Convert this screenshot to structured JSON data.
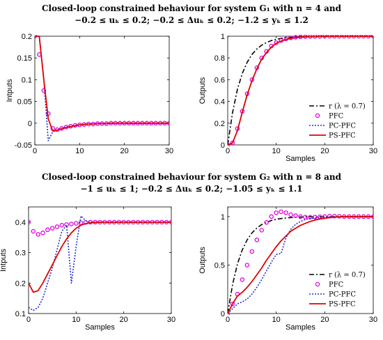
{
  "figure_titles": [
    {
      "line1": "Closed-loop constrained behaviour for system G₁ with n = 4 and",
      "line2": "−0.2 ≤ uₖ ≤ 0.2; −0.2 ≤ Δuₖ ≤ 0.2; −1.2 ≤ yₖ ≤ 1.2"
    },
    {
      "line1": "Closed-loop constrained behaviour for system G₂ with n = 8 and",
      "line2": "−1 ≤ uₖ ≤ 1; −0.2 ≤ Δuₖ ≤ 0.2; −1.05 ≤ yₖ ≤ 1.1"
    }
  ],
  "colors": {
    "reference": "#000000",
    "pfc": "#e000e0",
    "pc_pfc": "#1f2fd8",
    "ps_pfc": "#e00000"
  },
  "chart_data": [
    {
      "type": "line",
      "xlabel": "",
      "ylabel": "Intputs",
      "xlim": [
        0,
        30
      ],
      "ylim": [
        -0.05,
        0.2
      ],
      "xticks": [
        0,
        10,
        20,
        30
      ],
      "yticks": [
        -0.05,
        0,
        0.05,
        0.1,
        0.15,
        0.2
      ],
      "ytick_labels": [
        "-0.05",
        "0",
        "0.05",
        "0.1",
        "0.15",
        "0.2"
      ],
      "legend": null,
      "series": [
        {
          "key": "pfc",
          "x": [
            0,
            1,
            2,
            3,
            4,
            5,
            6,
            7,
            8,
            9,
            10,
            11,
            12,
            13,
            14,
            15,
            16,
            17,
            18,
            19,
            20,
            21,
            22,
            23,
            24,
            25,
            26,
            27,
            28,
            29,
            30
          ],
          "y": [
            0.2,
            0.158,
            0.075,
            0.022,
            -0.012,
            -0.015,
            -0.012,
            -0.009,
            -0.007,
            -0.005,
            -0.004,
            -0.003,
            -0.002,
            -0.002,
            -0.001,
            -0.001,
            -0.001,
            0,
            0,
            0,
            0,
            0,
            0,
            0,
            0,
            0,
            0,
            0,
            0,
            0,
            0
          ]
        },
        {
          "key": "pc_pfc",
          "x": [
            0,
            1,
            2,
            3,
            4,
            5,
            6,
            7,
            8,
            9,
            10,
            11,
            12,
            13,
            14,
            15,
            16,
            17,
            18,
            19,
            20,
            21,
            22,
            23,
            24,
            25,
            26,
            27,
            28,
            29,
            30
          ],
          "y": [
            0.2,
            0.2,
            0.1,
            -0.04,
            -0.02,
            -0.015,
            -0.012,
            -0.009,
            -0.007,
            -0.005,
            -0.004,
            -0.003,
            -0.002,
            -0.002,
            -0.001,
            -0.001,
            -0.001,
            0,
            0,
            0,
            0,
            0,
            0,
            0,
            0,
            0,
            0,
            0,
            0,
            0,
            0
          ]
        },
        {
          "key": "ps_pfc",
          "x": [
            0,
            1,
            2,
            3,
            4,
            5,
            6,
            7,
            8,
            9,
            10,
            11,
            12,
            13,
            14,
            15,
            16,
            17,
            18,
            19,
            20,
            21,
            22,
            23,
            24,
            25,
            26,
            27,
            28,
            29,
            30
          ],
          "y": [
            0.2,
            0.2,
            0.1,
            0.01,
            -0.018,
            -0.016,
            -0.013,
            -0.01,
            -0.008,
            -0.006,
            -0.004,
            -0.003,
            -0.002,
            -0.002,
            -0.001,
            -0.001,
            -0.001,
            0,
            0,
            0,
            0,
            0,
            0,
            0,
            0,
            0,
            0,
            0,
            0,
            0,
            0
          ]
        }
      ]
    },
    {
      "type": "line",
      "xlabel": "Samples",
      "ylabel": "Outputs",
      "xlim": [
        0,
        30
      ],
      "ylim": [
        0,
        1
      ],
      "xticks": [
        0,
        10,
        20,
        30
      ],
      "yticks": [
        0,
        0.2,
        0.4,
        0.6,
        0.8,
        1
      ],
      "ytick_labels": [
        "0",
        "0.2",
        "0.4",
        "0.6",
        "0.8",
        "1"
      ],
      "legend": {
        "placement": "bottom-right",
        "labels": [
          "r (λ = 0.7)",
          "PFC",
          "PC-PFC",
          "PS-PFC"
        ]
      },
      "series": [
        {
          "key": "ref",
          "x": [
            0,
            1,
            2,
            3,
            4,
            5,
            6,
            7,
            8,
            9,
            10,
            11,
            12,
            13,
            14,
            15,
            16,
            17,
            18,
            19,
            20,
            21,
            22,
            23,
            24,
            25,
            26,
            27,
            28,
            29,
            30
          ],
          "y": [
            0,
            0.3,
            0.51,
            0.657,
            0.76,
            0.832,
            0.882,
            0.918,
            0.942,
            0.96,
            0.972,
            0.98,
            0.986,
            0.99,
            0.993,
            0.995,
            0.997,
            0.998,
            0.998,
            0.999,
            0.999,
            0.999,
            1,
            1,
            1,
            1,
            1,
            1,
            1,
            1,
            1
          ]
        },
        {
          "key": "pfc",
          "x": [
            0,
            1,
            2,
            3,
            4,
            5,
            6,
            7,
            8,
            9,
            10,
            11,
            12,
            13,
            14,
            15,
            16,
            17,
            18,
            19,
            20,
            21,
            22,
            23,
            24,
            25,
            26,
            27,
            28,
            29,
            30
          ],
          "y": [
            0,
            0.02,
            0.15,
            0.31,
            0.47,
            0.6,
            0.71,
            0.8,
            0.86,
            0.91,
            0.94,
            0.96,
            0.975,
            0.985,
            0.99,
            0.994,
            0.996,
            0.998,
            0.999,
            0.999,
            1,
            1,
            1,
            1,
            1,
            1,
            1,
            1,
            1,
            1,
            1
          ]
        },
        {
          "key": "pc_pfc",
          "x": [
            0,
            1,
            2,
            3,
            4,
            5,
            6,
            7,
            8,
            9,
            10,
            11,
            12,
            13,
            14,
            15,
            16,
            17,
            18,
            19,
            20,
            21,
            22,
            23,
            24,
            25,
            26,
            27,
            28,
            29,
            30
          ],
          "y": [
            0,
            0.02,
            0.13,
            0.3,
            0.46,
            0.59,
            0.7,
            0.79,
            0.85,
            0.9,
            0.935,
            0.955,
            0.97,
            0.98,
            0.987,
            0.992,
            0.995,
            0.997,
            0.998,
            0.999,
            1,
            1,
            1,
            1,
            1,
            1,
            1,
            1,
            1,
            1,
            1
          ]
        },
        {
          "key": "ps_pfc",
          "x": [
            0,
            1,
            2,
            3,
            4,
            5,
            6,
            7,
            8,
            9,
            10,
            11,
            12,
            13,
            14,
            15,
            16,
            17,
            18,
            19,
            20,
            21,
            22,
            23,
            24,
            25,
            26,
            27,
            28,
            29,
            30
          ],
          "y": [
            0,
            0.02,
            0.13,
            0.3,
            0.46,
            0.59,
            0.7,
            0.79,
            0.85,
            0.9,
            0.935,
            0.955,
            0.97,
            0.98,
            0.987,
            0.992,
            0.995,
            0.997,
            0.998,
            0.999,
            1,
            1,
            1,
            1,
            1,
            1,
            1,
            1,
            1,
            1,
            1
          ]
        }
      ]
    },
    {
      "type": "line",
      "xlabel": "Samples",
      "ylabel": "Intputs",
      "xlim": [
        0,
        30
      ],
      "ylim": [
        0.1,
        0.45
      ],
      "xticks": [
        0,
        10,
        20,
        30
      ],
      "yticks": [
        0.1,
        0.2,
        0.3,
        0.4
      ],
      "ytick_labels": [
        "0.1",
        "0.2",
        "0.3",
        "0.4"
      ],
      "legend": null,
      "series": [
        {
          "key": "pfc",
          "x": [
            0,
            1,
            2,
            3,
            4,
            5,
            6,
            7,
            8,
            9,
            10,
            11,
            12,
            13,
            14,
            15,
            16,
            17,
            18,
            19,
            20,
            21,
            22,
            23,
            24,
            25,
            26,
            27,
            28,
            29,
            30
          ],
          "y": [
            0.4,
            0.37,
            0.36,
            0.365,
            0.375,
            0.38,
            0.385,
            0.39,
            0.392,
            0.394,
            0.396,
            0.398,
            0.399,
            0.4,
            0.4,
            0.4,
            0.4,
            0.4,
            0.4,
            0.4,
            0.4,
            0.4,
            0.4,
            0.4,
            0.4,
            0.4,
            0.4,
            0.4,
            0.4,
            0.4,
            0.4
          ]
        },
        {
          "key": "pc_pfc",
          "x": [
            0,
            1,
            2,
            3,
            4,
            5,
            6,
            7,
            8,
            9,
            10,
            11,
            12,
            13,
            14,
            15,
            16,
            17,
            18,
            19,
            20,
            21,
            22,
            23,
            24,
            25,
            26,
            27,
            28,
            29,
            30
          ],
          "y": [
            0.12,
            0.11,
            0.12,
            0.15,
            0.2,
            0.25,
            0.31,
            0.37,
            0.39,
            0.2,
            0.32,
            0.42,
            0.405,
            0.4,
            0.4,
            0.4,
            0.4,
            0.4,
            0.4,
            0.4,
            0.4,
            0.4,
            0.4,
            0.4,
            0.4,
            0.4,
            0.4,
            0.4,
            0.4,
            0.4,
            0.4
          ]
        },
        {
          "key": "ps_pfc",
          "x": [
            0,
            1,
            2,
            3,
            4,
            5,
            6,
            7,
            8,
            9,
            10,
            11,
            12,
            13,
            14,
            15,
            16,
            17,
            18,
            19,
            20,
            21,
            22,
            23,
            24,
            25,
            26,
            27,
            28,
            29,
            30
          ],
          "y": [
            0.2,
            0.17,
            0.175,
            0.2,
            0.23,
            0.26,
            0.29,
            0.32,
            0.345,
            0.365,
            0.38,
            0.39,
            0.395,
            0.398,
            0.399,
            0.4,
            0.4,
            0.4,
            0.4,
            0.4,
            0.4,
            0.4,
            0.4,
            0.4,
            0.4,
            0.4,
            0.4,
            0.4,
            0.4,
            0.4,
            0.4
          ]
        }
      ]
    },
    {
      "type": "line",
      "xlabel": "Samples",
      "ylabel": "Outputs",
      "xlim": [
        0,
        30
      ],
      "ylim": [
        0,
        1.1
      ],
      "xticks": [
        0,
        10,
        20,
        30
      ],
      "yticks": [
        0,
        0.5,
        1
      ],
      "ytick_labels": [
        "0",
        "0.5",
        "1"
      ],
      "legend": {
        "placement": "bottom-right",
        "labels": [
          "r (λ = 0.7)",
          "PFC",
          "PC-PFC",
          "PS-PFC"
        ]
      },
      "series": [
        {
          "key": "ref",
          "x": [
            0,
            1,
            2,
            3,
            4,
            5,
            6,
            7,
            8,
            9,
            10,
            11,
            12,
            13,
            14,
            15,
            16,
            17,
            18,
            19,
            20,
            21,
            22,
            23,
            24,
            25,
            26,
            27,
            28,
            29,
            30
          ],
          "y": [
            0,
            0.3,
            0.51,
            0.657,
            0.76,
            0.832,
            0.882,
            0.918,
            0.942,
            0.96,
            0.972,
            0.98,
            0.986,
            0.99,
            0.993,
            0.995,
            0.997,
            0.998,
            0.998,
            0.999,
            0.999,
            0.999,
            1,
            1,
            1,
            1,
            1,
            1,
            1,
            1,
            1
          ]
        },
        {
          "key": "pfc",
          "x": [
            0,
            1,
            2,
            3,
            4,
            5,
            6,
            7,
            8,
            9,
            10,
            11,
            12,
            13,
            14,
            15,
            16,
            17,
            18,
            19,
            20,
            21,
            22,
            23,
            24,
            25,
            26,
            27,
            28,
            29,
            30
          ],
          "y": [
            0,
            0.1,
            0.2,
            0.35,
            0.5,
            0.64,
            0.76,
            0.86,
            0.94,
            1.0,
            1.04,
            1.05,
            1.04,
            1.02,
            1.01,
            1.0,
            0.995,
            0.993,
            0.995,
            0.998,
            1.0,
            1.005,
            1.005,
            1.003,
            1.0,
            1.0,
            1.0,
            1.0,
            1.0,
            1.0,
            1.0
          ]
        },
        {
          "key": "pc_pfc",
          "x": [
            0,
            1,
            2,
            3,
            4,
            5,
            6,
            7,
            8,
            9,
            10,
            11,
            12,
            13,
            14,
            15,
            16,
            17,
            18,
            19,
            20,
            21,
            22,
            23,
            24,
            25,
            26,
            27,
            28,
            29,
            30
          ],
          "y": [
            0,
            0.05,
            0.1,
            0.12,
            0.15,
            0.2,
            0.27,
            0.35,
            0.44,
            0.53,
            0.61,
            0.62,
            0.78,
            0.87,
            0.92,
            0.95,
            0.97,
            0.98,
            0.985,
            0.99,
            0.993,
            0.995,
            0.997,
            0.998,
            0.999,
            1,
            1,
            1,
            1,
            1,
            1
          ]
        },
        {
          "key": "ps_pfc",
          "x": [
            0,
            1,
            2,
            3,
            4,
            5,
            6,
            7,
            8,
            9,
            10,
            11,
            12,
            13,
            14,
            15,
            16,
            17,
            18,
            19,
            20,
            21,
            22,
            23,
            24,
            25,
            26,
            27,
            28,
            29,
            30
          ],
          "y": [
            0,
            0.1,
            0.18,
            0.22,
            0.27,
            0.33,
            0.4,
            0.47,
            0.55,
            0.62,
            0.69,
            0.75,
            0.8,
            0.85,
            0.88,
            0.91,
            0.93,
            0.95,
            0.965,
            0.975,
            0.983,
            0.99,
            0.995,
            0.998,
            1,
            1,
            1,
            1,
            1,
            1,
            1
          ]
        }
      ]
    }
  ]
}
